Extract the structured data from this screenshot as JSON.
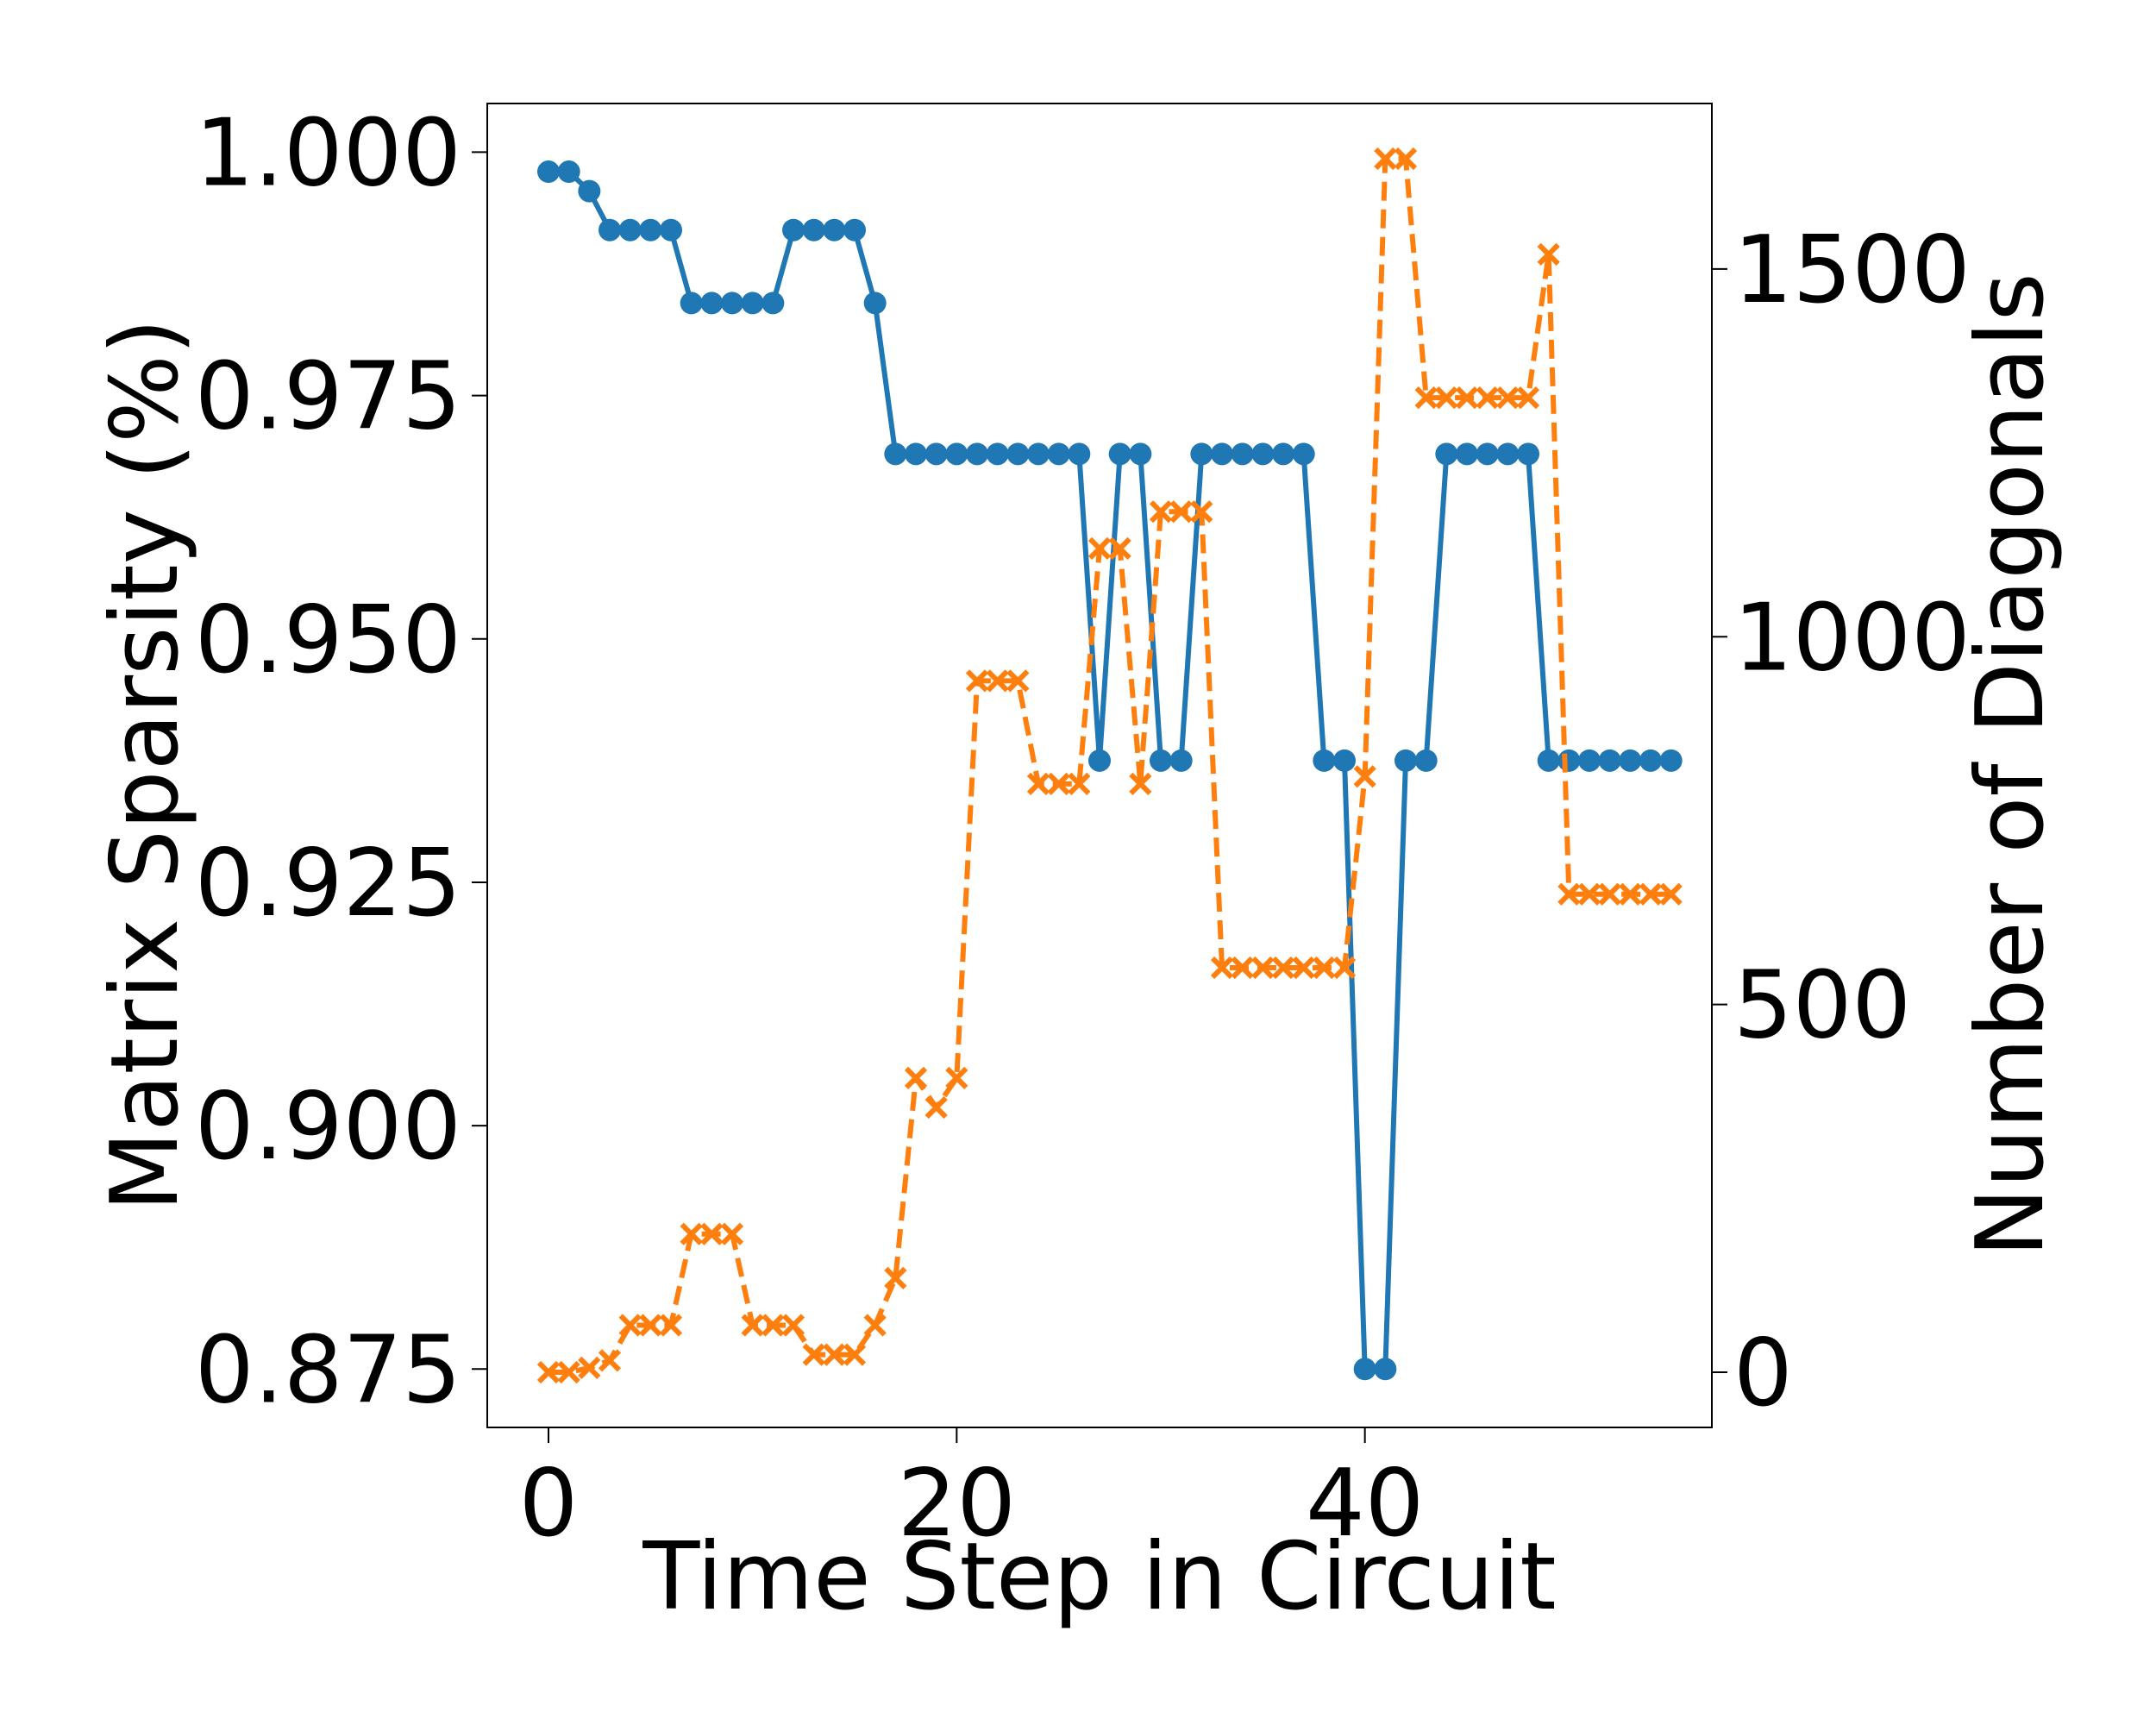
{
  "chart_data": {
    "type": "line",
    "title": "",
    "xlabel": "Time Step in Circuit",
    "ylabel": "Matrix Sparsity (%)",
    "y2label": "Number of Diagonals",
    "xlim": [
      -3,
      57
    ],
    "ylim": [
      0.869,
      1.005
    ],
    "y2lim": [
      -75,
      1725
    ],
    "xticks": [
      0,
      20,
      40
    ],
    "xtick_labels": [
      "0",
      "20",
      "40"
    ],
    "yticks": [
      0.875,
      0.9,
      0.925,
      0.95,
      0.975,
      1.0
    ],
    "ytick_labels": [
      "0.875",
      "0.900",
      "0.925",
      "0.950",
      "0.975",
      "1.000"
    ],
    "y2ticks": [
      0,
      500,
      1000,
      1500
    ],
    "y2tick_labels": [
      "0",
      "500",
      "1000",
      "1500"
    ],
    "grid": false,
    "x": [
      0,
      1,
      2,
      3,
      4,
      5,
      6,
      7,
      8,
      9,
      10,
      11,
      12,
      13,
      14,
      15,
      16,
      17,
      18,
      19,
      20,
      21,
      22,
      23,
      24,
      25,
      26,
      27,
      28,
      29,
      30,
      31,
      32,
      33,
      34,
      35,
      36,
      37,
      38,
      39,
      40,
      41,
      42,
      43,
      44,
      45,
      46,
      47,
      48,
      49,
      50,
      51,
      52,
      53,
      54,
      55
    ],
    "series": [
      {
        "axis": "left",
        "color": "#1f77b4",
        "style": "solid",
        "marker": "circle",
        "values": [
          0.998,
          0.998,
          0.996,
          0.992,
          0.992,
          0.992,
          0.992,
          0.9845,
          0.9845,
          0.9845,
          0.9845,
          0.9845,
          0.992,
          0.992,
          0.992,
          0.992,
          0.9845,
          0.969,
          0.969,
          0.969,
          0.969,
          0.969,
          0.969,
          0.969,
          0.969,
          0.969,
          0.969,
          0.9375,
          0.969,
          0.969,
          0.9375,
          0.9375,
          0.969,
          0.969,
          0.969,
          0.969,
          0.969,
          0.969,
          0.9375,
          0.9375,
          0.875,
          0.875,
          0.9375,
          0.9375,
          0.969,
          0.969,
          0.969,
          0.969,
          0.969,
          0.9375,
          0.9375,
          0.9375,
          0.9375,
          0.9375,
          0.9375,
          0.9375
        ]
      },
      {
        "axis": "right",
        "color": "#ff7f0e",
        "style": "dashed",
        "marker": "x",
        "values": [
          0,
          0,
          6,
          16,
          64,
          64,
          64,
          188,
          188,
          188,
          64,
          64,
          64,
          24,
          24,
          24,
          64,
          128,
          400,
          360,
          400,
          940,
          940,
          940,
          800,
          800,
          800,
          1120,
          1120,
          800,
          1170,
          1170,
          1170,
          550,
          550,
          550,
          550,
          550,
          550,
          550,
          810,
          1650,
          1650,
          1325,
          1325,
          1325,
          1325,
          1325,
          1325,
          1520,
          650,
          650,
          650,
          650,
          650,
          650
        ]
      }
    ]
  }
}
